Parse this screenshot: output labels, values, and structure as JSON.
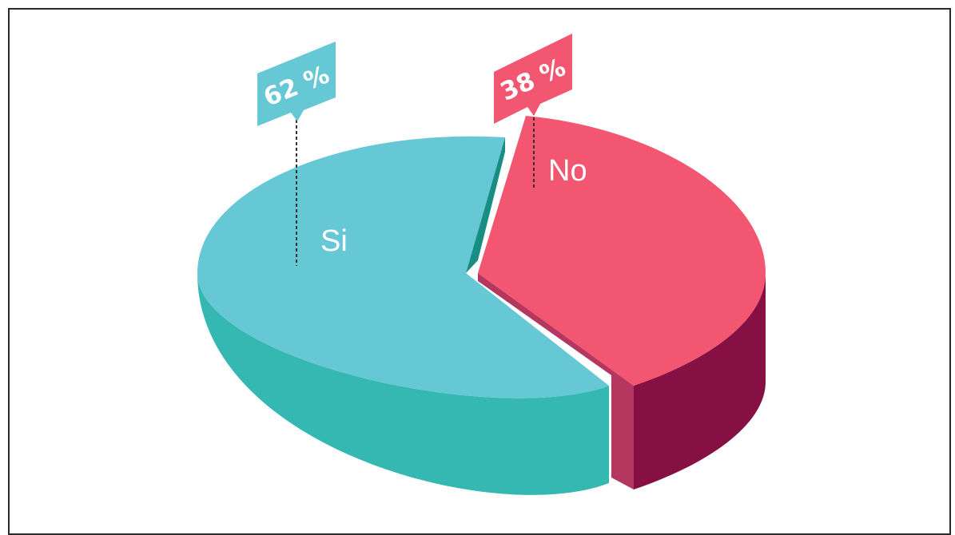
{
  "chart_data": {
    "type": "pie",
    "title": "",
    "style": "3d-exploded",
    "slices": [
      {
        "label": "Si",
        "value": 62,
        "value_label": "62 %",
        "top_color": "#67c8d5",
        "side_color": "#34b8b1",
        "edge_color": "#178d83"
      },
      {
        "label": "No",
        "value": 38,
        "value_label": "38 %",
        "top_color": "#f25670",
        "side_color": "#861043",
        "edge_color": "#b5365f"
      }
    ]
  }
}
